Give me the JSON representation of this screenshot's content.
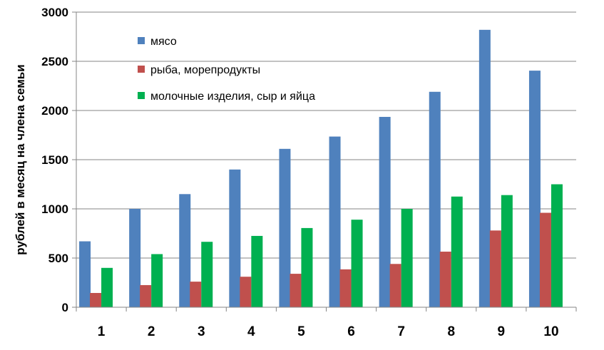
{
  "chart_data": {
    "type": "bar",
    "title": "",
    "xlabel": "",
    "ylabel": "рублей в месяц на члена семьи",
    "ylim": [
      0,
      3000
    ],
    "yticks": [
      0,
      500,
      1000,
      1500,
      2000,
      2500,
      3000
    ],
    "categories": [
      "1",
      "2",
      "3",
      "4",
      "5",
      "6",
      "7",
      "8",
      "9",
      "10"
    ],
    "grid": true,
    "legend_position": "top-left",
    "series": [
      {
        "name": "мясо",
        "color": "#4F81BD",
        "values": [
          670,
          1000,
          1150,
          1400,
          1610,
          1735,
          1935,
          2190,
          2820,
          2405
        ]
      },
      {
        "name": "рыба, морепродукты",
        "color": "#C0504D",
        "values": [
          145,
          225,
          260,
          310,
          340,
          385,
          440,
          565,
          780,
          960
        ]
      },
      {
        "name": "молочные изделия, сыр и яйца",
        "color": "#00B050",
        "values": [
          400,
          540,
          665,
          725,
          805,
          890,
          1000,
          1125,
          1140,
          1250
        ]
      }
    ]
  }
}
